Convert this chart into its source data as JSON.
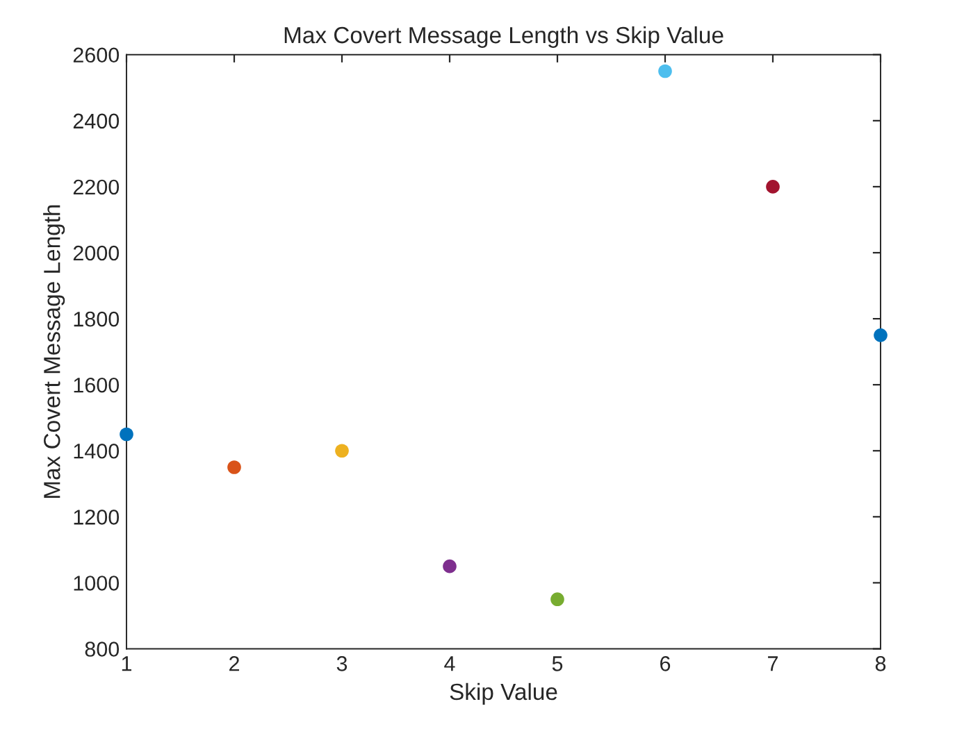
{
  "chart_data": {
    "type": "scatter",
    "title": "Max Covert Message Length vs Skip Value",
    "xlabel": "Skip Value",
    "ylabel": "Max Covert Message Length",
    "x": [
      1,
      2,
      3,
      4,
      5,
      6,
      7,
      8
    ],
    "values": [
      1450,
      1350,
      1400,
      1050,
      950,
      2550,
      2200,
      1750
    ],
    "colors": [
      "#0072bd",
      "#d95319",
      "#edb120",
      "#7e2f8e",
      "#77ac30",
      "#4dbeee",
      "#a2142f",
      "#0072bd"
    ],
    "xlim": [
      1,
      8
    ],
    "xticks": [
      1,
      2,
      3,
      4,
      5,
      6,
      7,
      8
    ],
    "ylim": [
      800,
      2600
    ],
    "yticks": [
      800,
      1000,
      1200,
      1400,
      1600,
      1800,
      2000,
      2200,
      2400,
      2600
    ],
    "marker": "circle",
    "grid": false,
    "legend": false
  }
}
